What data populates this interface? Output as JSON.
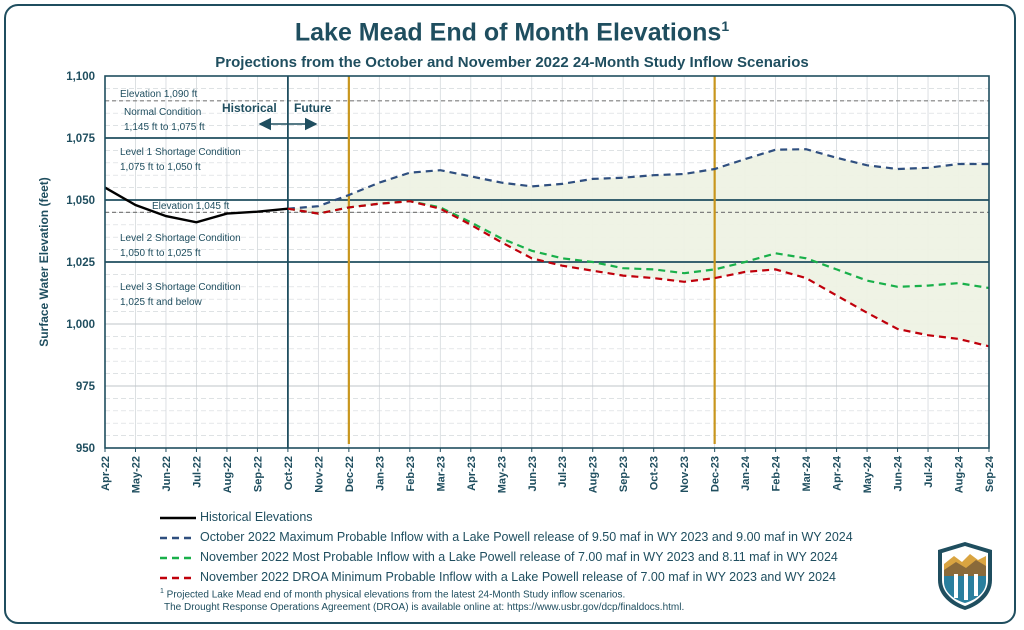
{
  "title": "Lake Mead End of Month Elevations",
  "title_sup": "1",
  "subtitle": "Projections from the October and November 2022 24-Month Study Inflow Scenarios",
  "colors": {
    "navy": "#1f4e5f",
    "historical": "#000000",
    "oct_max": "#2f4f7f",
    "nov_most": "#19b04a",
    "nov_min": "#c0000b",
    "study_line": "#c8961e",
    "band_fill": "#eef2e4"
  },
  "chart_data": {
    "type": "line",
    "title": "Lake Mead End of Month Elevations",
    "ylabel": "Surface Water Elevation (feet)",
    "xlabel": "",
    "ylim": [
      950,
      1100
    ],
    "yticks": [
      950,
      975,
      1000,
      1025,
      1050,
      1075,
      1100
    ],
    "ytick_labels": [
      "950",
      "975",
      "1,000",
      "1,025",
      "1,050",
      "1,075",
      "1,100"
    ],
    "categories": [
      "Apr-22",
      "May-22",
      "Jun-22",
      "Jul-22",
      "Aug-22",
      "Sep-22",
      "Oct-22",
      "Nov-22",
      "Dec-22",
      "Jan-23",
      "Feb-23",
      "Mar-23",
      "Apr-23",
      "May-23",
      "Jun-23",
      "Jul-23",
      "Aug-23",
      "Sep-23",
      "Oct-23",
      "Nov-23",
      "Dec-23",
      "Jan-24",
      "Feb-24",
      "Mar-24",
      "Apr-24",
      "May-24",
      "Jun-24",
      "Jul-24",
      "Aug-24",
      "Sep-24"
    ],
    "grid": true,
    "series": [
      {
        "name": "Historical Elevations",
        "style": "solid",
        "color": "#000000",
        "values": [
          1055,
          1048,
          1043.5,
          1041,
          1044.5,
          1045.3,
          1046.5,
          null,
          null,
          null,
          null,
          null,
          null,
          null,
          null,
          null,
          null,
          null,
          null,
          null,
          null,
          null,
          null,
          null,
          null,
          null,
          null,
          null,
          null,
          null
        ]
      },
      {
        "name": "October 2022 Maximum Probable Inflow with a Lake Powell release of 9.50 maf in WY 2023 and 9.00 maf in WY 2024",
        "style": "dashed",
        "color": "#2f4f7f",
        "values": [
          null,
          null,
          null,
          null,
          null,
          null,
          1046.5,
          1047.5,
          1052,
          1057,
          1061,
          1062,
          1059.5,
          1057,
          1055.5,
          1056.5,
          1058.5,
          1059,
          1060,
          1060.5,
          1062.5,
          1066.5,
          1070.3,
          1070.5,
          1067,
          1064,
          1062.5,
          1063,
          1064.5,
          1064.5
        ]
      },
      {
        "name": "November 2022 Most Probable Inflow with a Lake Powell release of 7.00 maf in WY 2023 and 8.11 maf in WY 2024",
        "style": "dashed",
        "color": "#19b04a",
        "values": [
          null,
          null,
          null,
          null,
          null,
          null,
          1046.5,
          1044.5,
          1047,
          1048.5,
          1049.5,
          1047,
          1041,
          1034.5,
          1029.5,
          1026.5,
          1025,
          1022.5,
          1022,
          1020.5,
          1022,
          1025,
          1028.5,
          1026.5,
          1022,
          1017.5,
          1015,
          1015.5,
          1016.5,
          1014.5
        ]
      },
      {
        "name": "November 2022 DROA Minimum Probable Inflow with a Lake Powell release of 7.00 maf in WY 2023 and  WY 2024",
        "style": "dashed",
        "color": "#c0000b",
        "values": [
          null,
          null,
          null,
          null,
          null,
          null,
          1046.5,
          1044.5,
          1047,
          1048.5,
          1049.5,
          1046.5,
          1040,
          1033,
          1026.5,
          1023.5,
          1021.5,
          1019.5,
          1018.5,
          1017,
          1018.5,
          1021,
          1022,
          1018.5,
          1011.5,
          1004.5,
          998,
          995.5,
          994,
          991
        ]
      }
    ],
    "reference_lines": [
      {
        "label": "Elevation 1,090 ft",
        "y": 1090,
        "style": "dashed"
      },
      {
        "label": "Elevation 1,045 ft",
        "y": 1045,
        "style": "dashed"
      },
      {
        "label": "",
        "y": 1075,
        "style": "solid"
      },
      {
        "label": "",
        "y": 1050,
        "style": "solid"
      },
      {
        "label": "",
        "y": 1025,
        "style": "solid"
      }
    ],
    "study_markers": [
      "Dec-22",
      "Dec-23"
    ],
    "divider_at": "Oct-22",
    "annotations": {
      "historical": "Historical",
      "future": "Future",
      "normal_l1": "Normal Condition",
      "normal_l2": "1,145 ft to 1,075 ft",
      "level1_l1": "Level 1 Shortage  Condition",
      "level1_l2": "1,075 ft to 1,050 ft",
      "level2_l1": "Level 2 Shortage  Condition",
      "level2_l2": "1,050 ft to 1,025 ft",
      "level3_l1": "Level 3 Shortage  Condition",
      "level3_l2": "1,025  ft and below"
    },
    "legend_position": "bottom"
  },
  "legend": {
    "historical": "Historical Elevations",
    "oct_max": "October 2022 Maximum Probable Inflow with a Lake Powell release of 9.50 maf in WY 2023 and 9.00 maf in WY 2024",
    "nov_most": "November 2022 Most Probable Inflow with a Lake Powell release of 7.00 maf in WY 2023 and 8.11 maf in WY 2024",
    "nov_min": "November 2022 DROA Minimum Probable Inflow with a Lake Powell release of 7.00 maf in WY 2023 and  WY 2024"
  },
  "footnote": {
    "sup": "1",
    "line1": " Projected Lake Mead end of month physical elevations from the latest 24-Month Study inflow scenarios.",
    "line2": "The Drought Response Operations Agreement (DROA) is available online at: https://www.usbr.gov/dcp/finaldocs.html."
  },
  "logo": {
    "icon": "reclamation-shield-logo"
  }
}
